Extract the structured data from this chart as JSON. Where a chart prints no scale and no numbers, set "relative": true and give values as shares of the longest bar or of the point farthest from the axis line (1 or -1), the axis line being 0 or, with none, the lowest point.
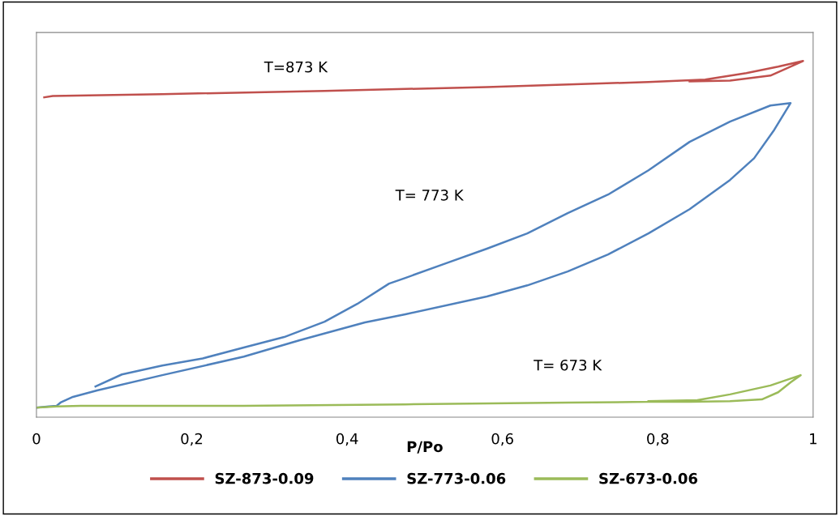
{
  "chart_data": {
    "type": "line",
    "relative": true,
    "xlabel": "P/Po",
    "xlim": [
      0,
      1
    ],
    "xticks": [
      0,
      {
        "value": 0.2,
        "label": "0,2"
      },
      {
        "value": 0.4,
        "label": "0,4"
      },
      {
        "value": 0.6,
        "label": "0,6"
      },
      {
        "value": 0.8,
        "label": "0,8"
      },
      1
    ],
    "series": [
      {
        "name": "SZ-873-0.09",
        "color": "#c0504d",
        "x": [
          0.01,
          0.021,
          0.162,
          0.371,
          0.58,
          0.788,
          0.861,
          0.914,
          0.955,
          0.987,
          0.945,
          0.893,
          0.841
        ],
        "values": [
          0.898,
          0.902,
          0.907,
          0.916,
          0.927,
          0.941,
          0.948,
          0.966,
          0.984,
          1.0,
          0.959,
          0.945,
          0.943
        ]
      },
      {
        "name": "SZ-773-0.06",
        "color": "#4f81bd",
        "x": [
          0,
          0.016,
          0.026,
          0.031,
          0.047,
          0.078,
          0.162,
          0.267,
          0.339,
          0.423,
          0.475,
          0.58,
          0.632,
          0.684,
          0.736,
          0.788,
          0.841,
          0.893,
          0.924,
          0.95,
          0.971,
          0.945,
          0.893,
          0.841,
          0.788,
          0.736,
          0.684,
          0.632,
          0.58,
          0.527,
          0.475,
          0.454,
          0.413,
          0.371,
          0.319,
          0.266,
          0.214,
          0.162,
          0.11,
          0.076
        ],
        "values": [
          0.027,
          0.03,
          0.032,
          0.041,
          0.057,
          0.075,
          0.118,
          0.17,
          0.216,
          0.266,
          0.289,
          0.339,
          0.37,
          0.409,
          0.457,
          0.516,
          0.584,
          0.666,
          0.727,
          0.807,
          0.882,
          0.875,
          0.83,
          0.773,
          0.693,
          0.625,
          0.573,
          0.516,
          0.473,
          0.432,
          0.391,
          0.375,
          0.318,
          0.268,
          0.225,
          0.195,
          0.165,
          0.145,
          0.12,
          0.086
        ]
      },
      {
        "name": "SZ-673-0.06",
        "color": "#9bbb59",
        "x": [
          0,
          0.026,
          0.057,
          0.266,
          0.475,
          0.684,
          0.788,
          0.841,
          0.893,
          0.934,
          0.955,
          0.971,
          0.984,
          0.945,
          0.893,
          0.851,
          0.788
        ],
        "values": [
          0.027,
          0.03,
          0.032,
          0.032,
          0.036,
          0.041,
          0.043,
          0.043,
          0.045,
          0.05,
          0.07,
          0.098,
          0.118,
          0.089,
          0.064,
          0.048,
          0.045
        ]
      }
    ],
    "annotations": [
      "T=873 K",
      "T= 773 K",
      "T= 673 K"
    ],
    "legend": "bottom",
    "grid": false,
    "marker": "none",
    "line_style": "solid"
  }
}
